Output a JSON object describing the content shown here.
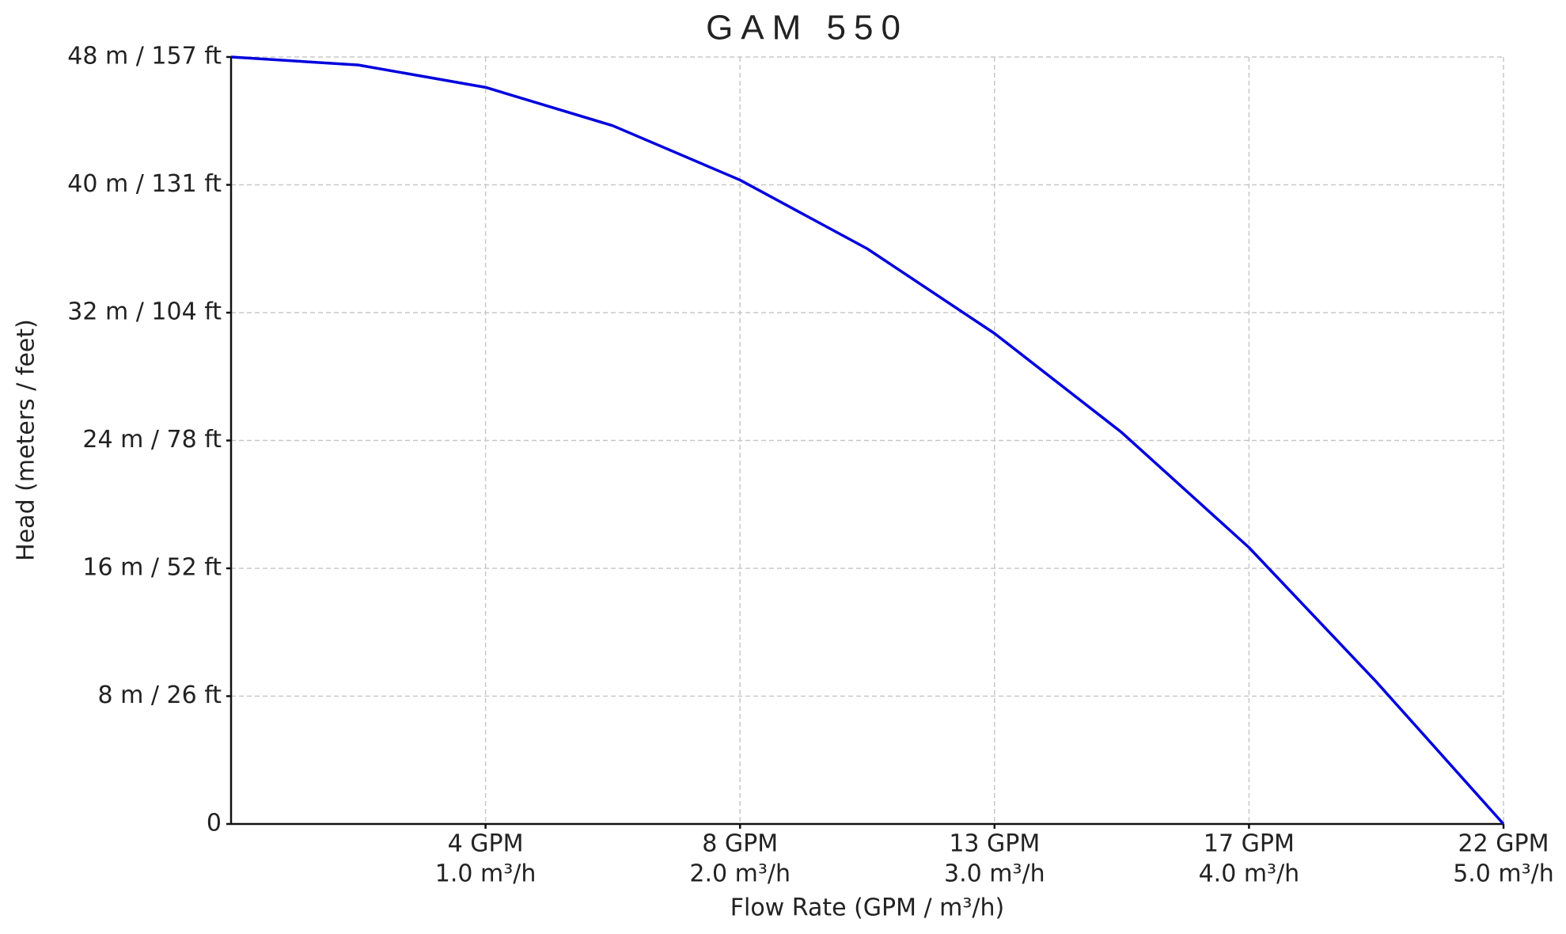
{
  "chart_data": {
    "type": "line",
    "title": "GAM 550",
    "x_label": "Flow Rate (GPM / m³/h)",
    "y_label": "Head (meters / feet)",
    "x": [
      0,
      0.5,
      1,
      1.5,
      2,
      2.5,
      3,
      3.5,
      4,
      4.5,
      5
    ],
    "series": [
      {
        "color": "#0000dd",
        "values": [
          48,
          47.5,
          46.1,
          43.7,
          40.3,
          36,
          30.7,
          24.5,
          17.3,
          8.9,
          0
        ]
      }
    ],
    "xlim": [
      0,
      5
    ],
    "xticks": [
      {
        "value": 1,
        "label": [
          "4 GPM",
          "1.0 m³/h"
        ]
      },
      {
        "value": 2,
        "label": [
          "8 GPM",
          "2.0 m³/h"
        ]
      },
      {
        "value": 3,
        "label": [
          "13 GPM",
          "3.0 m³/h"
        ]
      },
      {
        "value": 4,
        "label": [
          "17 GPM",
          "4.0 m³/h"
        ]
      },
      {
        "value": 5,
        "label": [
          "22 GPM",
          "5.0 m³/h"
        ]
      }
    ],
    "ylim": [
      0,
      48
    ],
    "yticks": [
      0,
      {
        "value": 8,
        "label": "8 m / 26 ft"
      },
      {
        "value": 16,
        "label": "16 m / 52 ft"
      },
      {
        "value": 24,
        "label": "24 m / 78 ft"
      },
      {
        "value": 32,
        "label": "32 m / 104 ft"
      },
      {
        "value": 40,
        "label": "40 m / 131 ft"
      },
      {
        "value": 48,
        "label": "48 m / 157 ft"
      }
    ],
    "grid": true
  }
}
